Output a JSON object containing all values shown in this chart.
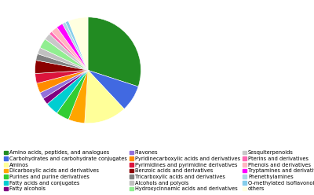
{
  "labels": [
    "Amino acids, peptides, and analogues",
    "Carbohydrates and carbohydrate conjugates",
    "Aminos",
    "Dicarboxylic acids and derivatives",
    "Purines and purine derivatives",
    "Fatty acids and conjugates",
    "Fatty alcohols",
    "Flavones",
    "Pyridinecarboxylic acids and derivatives",
    "Pyrimidines and pyrimidine derivatives",
    "Benzoic acids and derivatives",
    "Tricarboxylic acids and derivatives",
    "Alcohols and polyols",
    "Hydroxycinnamic acids and derivatives",
    "Sesquiterpenoids",
    "Pterins and derivatives",
    "Phenols and derivatives",
    "Tryptamines and derivatives",
    "Phenethylamines",
    "O-methylated isoflavonoids",
    "others"
  ],
  "sizes": [
    30,
    8,
    13,
    5,
    4,
    4,
    2,
    2,
    3,
    3,
    4,
    2,
    2,
    3,
    2,
    1,
    2,
    2,
    1,
    1,
    6
  ],
  "colors": [
    "#228B22",
    "#4169E1",
    "#FFFF99",
    "#FFA500",
    "#32CD32",
    "#00CED1",
    "#800080",
    "#9370DB",
    "#FF8C00",
    "#DC143C",
    "#8B0000",
    "#808080",
    "#C0C0C0",
    "#90EE90",
    "#C8C8C8",
    "#FF69B4",
    "#FFB6C1",
    "#FF00FF",
    "#ADD8E6",
    "#87CEEB",
    "#FFFFE0"
  ],
  "legend_fontsize": 4.8,
  "legend_cols": 3,
  "legend_order": [
    "Amino acids, peptides, and analogues",
    "Carbohydrates and carbohydrate conjugates",
    "Aminos",
    "Dicarboxylic acids and derivatives",
    "Purines and purine derivatives",
    "Fatty acids and conjugates",
    "Fatty alcohols",
    "Flavones",
    "Pyridinecarboxylic acids and derivatives",
    "Pyrimidines and pyrimidine derivatives",
    "Benzoic acids and derivatives",
    "Tricarboxylic acids and derivatives",
    "Alcohols and polyols",
    "Hydroxycinnamic acids and derivatives",
    "Sesquiterpenoids",
    "Pterins and derivatives",
    "Phenols and derivatives",
    "Tryptamines and derivatives",
    "Phenethylamines",
    "O-methylated isoflavonoids",
    "others"
  ]
}
